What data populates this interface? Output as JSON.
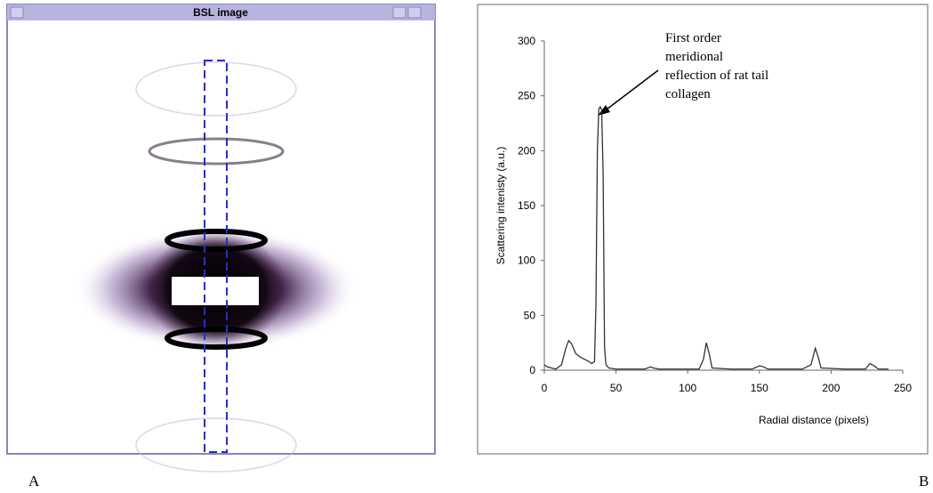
{
  "window_title": "BSL image",
  "panel_labels": [
    "A",
    "B"
  ],
  "chart_data": {
    "type": "line",
    "xlabel": "Radial distance (pixels)",
    "ylabel": "Scattering intenisty (a.u.)",
    "annotation": [
      "First order",
      "meridional",
      "reflection of rat tail",
      "collagen"
    ],
    "x": [
      0,
      2,
      5,
      8,
      12,
      15,
      17,
      19,
      22,
      25,
      28,
      31,
      33,
      35,
      36,
      37,
      38,
      39,
      40,
      41,
      42,
      43,
      45,
      50,
      60,
      70,
      74,
      76,
      80,
      100,
      108,
      111,
      113,
      115,
      117,
      130,
      145,
      150,
      153,
      156,
      180,
      186,
      189,
      191,
      193,
      210,
      224,
      227,
      230,
      233,
      240
    ],
    "values": [
      5,
      3,
      2,
      1,
      5,
      20,
      27,
      24,
      15,
      12,
      10,
      8,
      6,
      8,
      60,
      200,
      238,
      240,
      237,
      180,
      20,
      5,
      2,
      1,
      1,
      1,
      3,
      2,
      1,
      1,
      1,
      10,
      25,
      15,
      2,
      1,
      1,
      4,
      3,
      1,
      1,
      5,
      20,
      12,
      2,
      1,
      1,
      6,
      4,
      1,
      1
    ],
    "color": "#333333",
    "xlim": [
      0,
      250
    ],
    "xticks": [
      0,
      50,
      100,
      150,
      200,
      250
    ],
    "ylim": [
      0,
      300
    ],
    "yticks": [
      0,
      50,
      100,
      150,
      200,
      250,
      300
    ],
    "grid": false
  }
}
